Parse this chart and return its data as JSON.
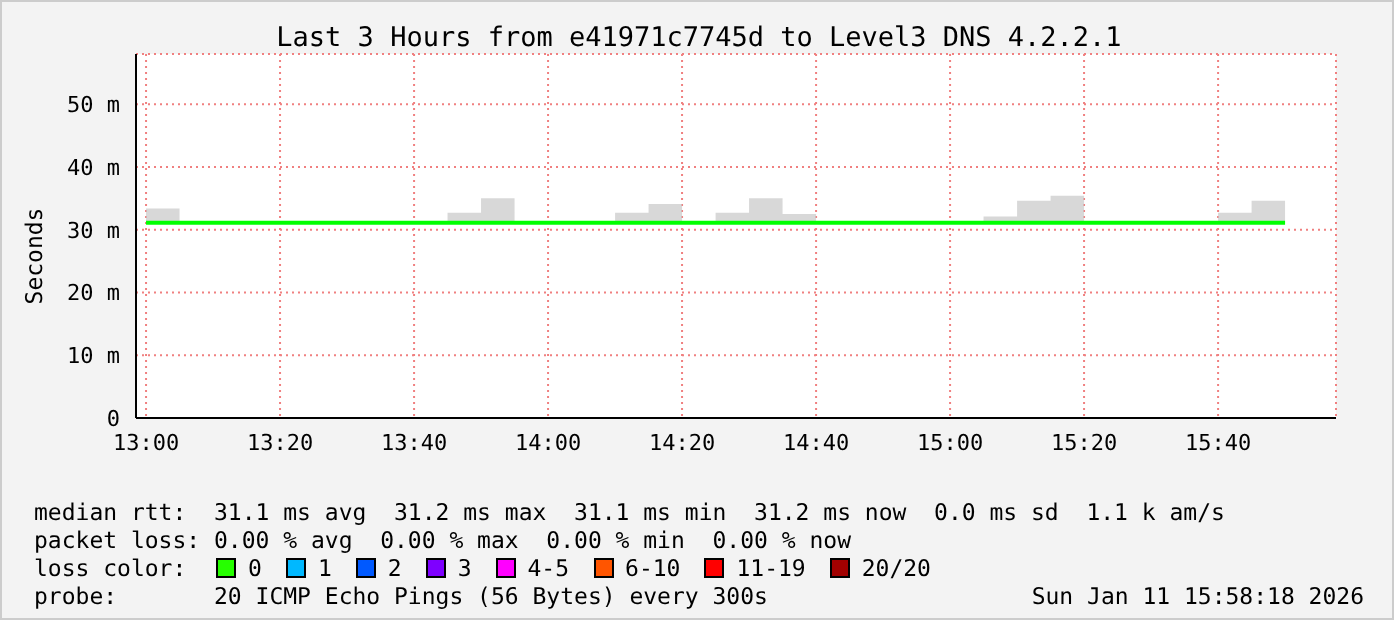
{
  "chart_data": {
    "type": "step",
    "title": "Last 3 Hours from e41971c7745d to Level3 DNS 4.2.2.1",
    "ylabel": "Seconds",
    "x": [
      13,
      13.0833,
      13.1667,
      13.25,
      13.3333,
      13.4167,
      13.5,
      13.5833,
      13.6667,
      13.75,
      13.8333,
      13.9167,
      14,
      14.0833,
      14.1667,
      14.25,
      14.3333,
      14.4167,
      14.5,
      14.5833,
      14.6667,
      14.75,
      14.8333,
      14.9167,
      15,
      15.0833,
      15.1667,
      15.25,
      15.3333,
      15.4167,
      15.5,
      15.5833,
      15.6667,
      15.75,
      15.8333
    ],
    "series": [
      {
        "color": "#00ff00",
        "values": [
          31.1,
          31.1,
          31.1,
          31.1,
          31.1,
          31.1,
          31.1,
          31.1,
          31.1,
          31.1,
          31.1,
          31.1,
          31.1,
          31.1,
          31.1,
          31.1,
          31.1,
          31.1,
          31.1,
          31.1,
          31.1,
          31.1,
          31.1,
          31.1,
          31.1,
          31.1,
          31.1,
          31.1,
          31.1,
          31.1,
          31.1,
          31.1,
          31.1,
          31.1,
          31.1
        ],
        "lower": [
          31.1,
          31.1,
          31.1,
          31.1,
          31.1,
          31.1,
          31.1,
          31.1,
          31.1,
          31.1,
          31.1,
          31.1,
          31.1,
          31.1,
          31.1,
          31.1,
          31.1,
          31.1,
          31.1,
          31.1,
          31.1,
          31.1,
          31.1,
          31.1,
          31.1,
          31.1,
          31.1,
          31.1,
          31.1,
          31.1,
          31.1,
          31.1,
          31.1,
          31.1,
          31.1
        ],
        "upper": [
          33.4,
          31.1,
          31.1,
          31.1,
          31.1,
          31.1,
          31.1,
          31.1,
          31.1,
          32.7,
          35.0,
          31.1,
          31.1,
          31.1,
          32.7,
          34.1,
          31.1,
          32.7,
          35.0,
          32.5,
          31.1,
          31.1,
          31.1,
          31.1,
          31.1,
          32.1,
          34.6,
          35.4,
          31.1,
          31.1,
          31.1,
          31.1,
          32.7,
          34.6,
          31.1
        ]
      }
    ],
    "xlim": [
      12.975,
      15.96
    ],
    "xticks": [
      {
        "value": 13,
        "label": "13:00"
      },
      {
        "value": 13.3333,
        "label": "13:20"
      },
      {
        "value": 13.6667,
        "label": "13:40"
      },
      {
        "value": 14,
        "label": "14:00"
      },
      {
        "value": 14.3333,
        "label": "14:20"
      },
      {
        "value": 14.6667,
        "label": "14:40"
      },
      {
        "value": 15,
        "label": "15:00"
      },
      {
        "value": 15.3333,
        "label": "15:20"
      },
      {
        "value": 15.6667,
        "label": "15:40"
      }
    ],
    "ylim": [
      0,
      58
    ],
    "yticks": [
      0,
      {
        "value": 10,
        "label": "10 m"
      },
      {
        "value": 20,
        "label": "20 m"
      },
      {
        "value": 30,
        "label": "30 m"
      },
      {
        "value": 40,
        "label": "40 m"
      },
      {
        "value": 50,
        "label": "50 m"
      }
    ],
    "grid": true,
    "annotations": [
      "median rtt:  31.1 ms avg  31.2 ms max  31.1 ms min  31.2 ms now  0.0 ms sd  1.1 k am/s",
      "packet loss: 0.00 % avg  0.00 % max  0.00 % min  0.00 % now",
      "loss color:",
      "0",
      "1",
      "2",
      "3",
      "4-5",
      "6-10",
      "11-19",
      "20/20",
      "probe:       20 ICMP Echo Pings (56 Bytes) every 300s",
      "Sun Jan 11 15:58:18 2026"
    ]
  }
}
